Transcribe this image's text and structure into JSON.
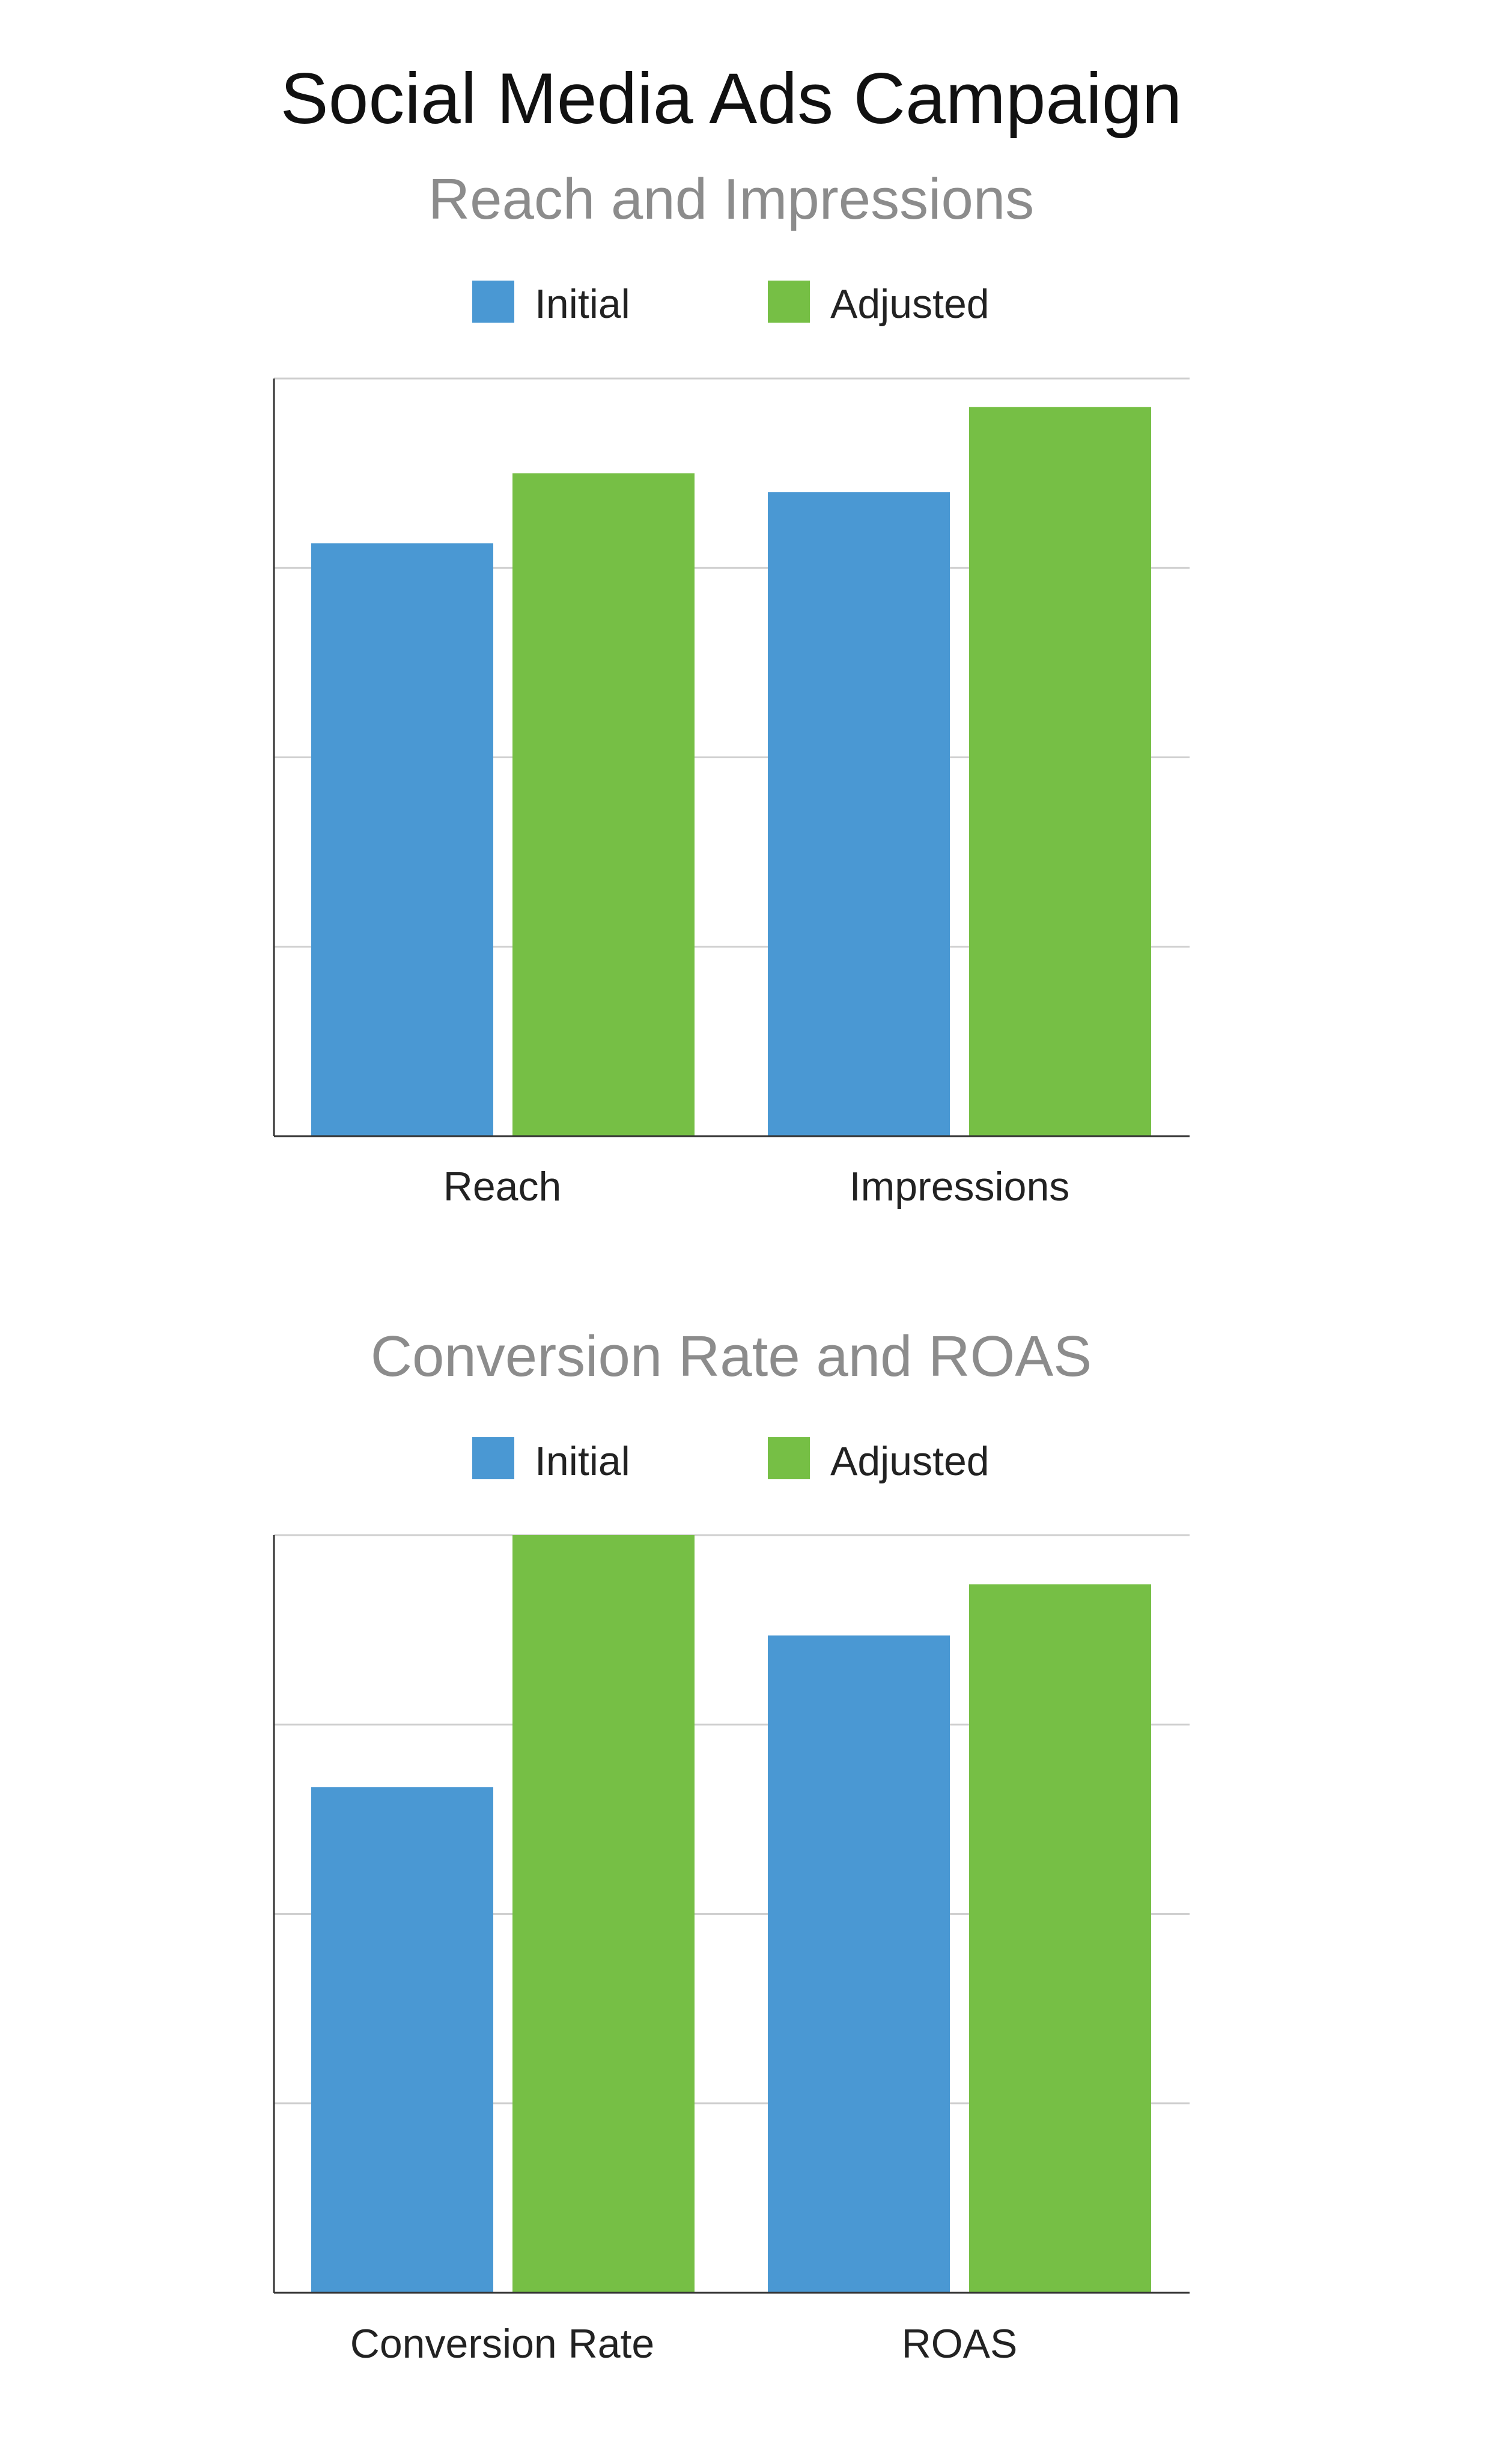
{
  "title": "Social Media Ads Campaign",
  "colors": {
    "initial": "#4a98d3",
    "adjusted": "#76bf45",
    "title": "#111111",
    "subtitle": "#8c8c8c",
    "grid": "#cfcfcf",
    "axis": "#333333"
  },
  "chart_data": [
    {
      "type": "bar",
      "title": "Reach and Impressions",
      "categories": [
        "Reach",
        "Impressions"
      ],
      "series": [
        {
          "name": "Initial",
          "values": [
            3.13,
            3.4
          ]
        },
        {
          "name": "Adjusted",
          "values": [
            3.5,
            3.85
          ]
        }
      ],
      "ylim": [
        0,
        4
      ],
      "grid": true,
      "legend": "top-center",
      "y_tick_labels_visible": false
    },
    {
      "type": "bar",
      "title": "Conversion Rate and ROAS",
      "categories": [
        "Conversion Rate",
        "ROAS"
      ],
      "series": [
        {
          "name": "Initial",
          "values": [
            2.67,
            3.47
          ]
        },
        {
          "name": "Adjusted",
          "values": [
            4.0,
            3.74
          ]
        }
      ],
      "ylim": [
        0,
        4
      ],
      "grid": true,
      "legend": "top-center",
      "y_tick_labels_visible": false
    }
  ]
}
